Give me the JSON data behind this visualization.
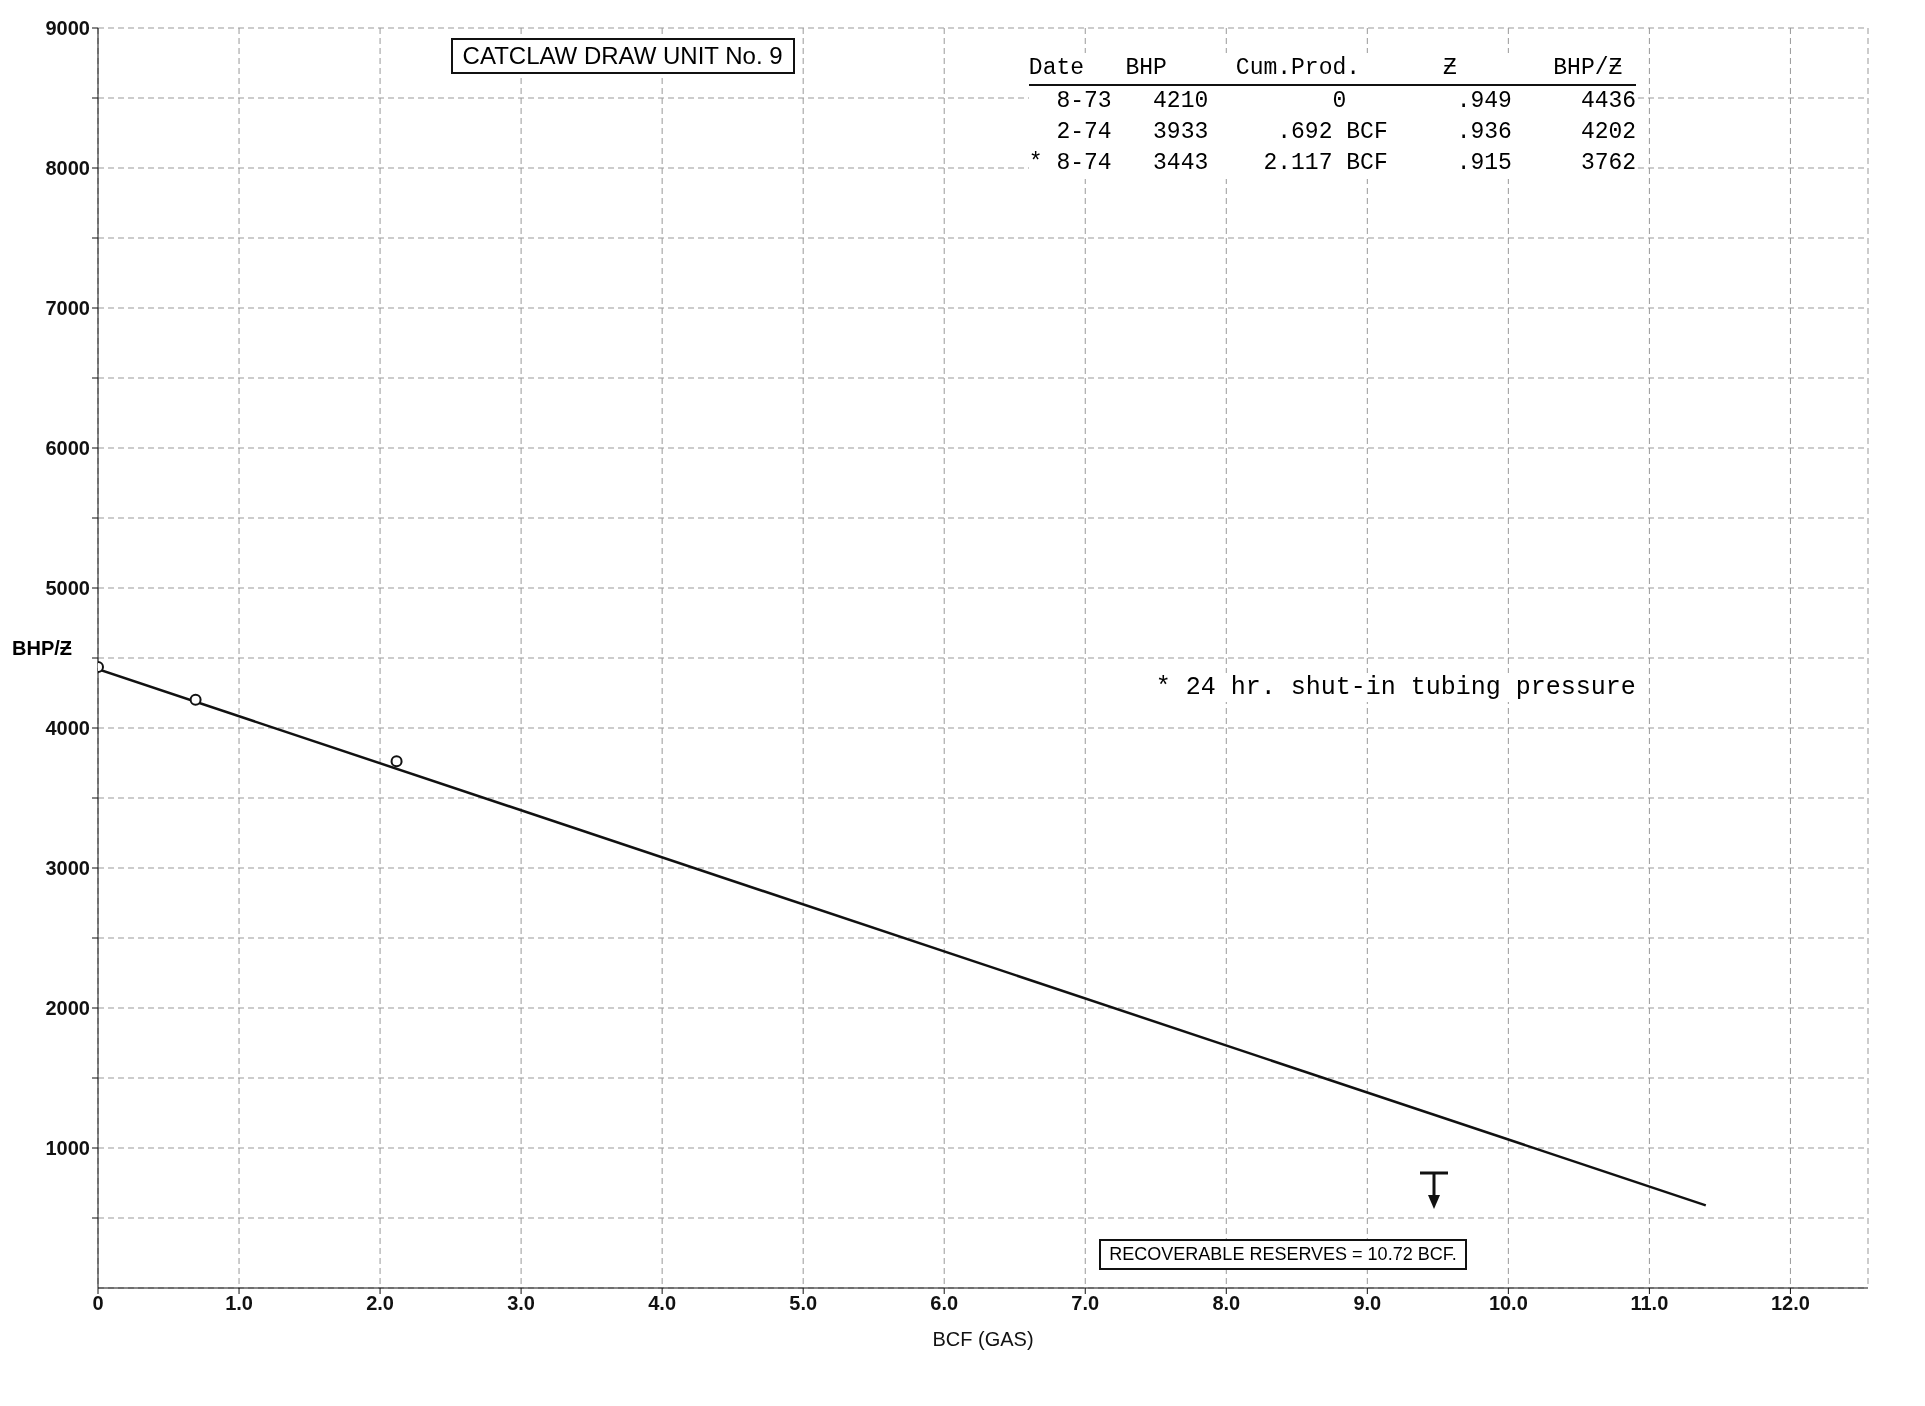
{
  "chart_data": {
    "type": "scatter",
    "title": "CATCLAW DRAW UNIT No. 9",
    "xlabel": "BCF (GAS)",
    "ylabel": "BHP/Ƶ",
    "x": [
      0,
      0.692,
      2.117
    ],
    "series": [
      {
        "color": "#111111",
        "values": [
          4436,
          4202,
          3762
        ],
        "marker": "circle"
      },
      {
        "type": "line",
        "color": "#111111",
        "x": [
          0,
          11.4
        ],
        "values": [
          4420,
          590
        ],
        "marker": "none",
        "line_style": "solid"
      }
    ],
    "xlim": [
      0,
      12.55
    ],
    "ylim": [
      0,
      9000
    ],
    "xticks": [
      0,
      {
        "value": 1,
        "label": "1.0"
      },
      {
        "value": 2,
        "label": "2.0"
      },
      {
        "value": 3,
        "label": "3.0"
      },
      {
        "value": 4,
        "label": "4.0"
      },
      {
        "value": 5,
        "label": "5.0"
      },
      {
        "value": 6,
        "label": "6.0"
      },
      {
        "value": 7,
        "label": "7.0"
      },
      {
        "value": 8,
        "label": "8.0"
      },
      {
        "value": 9,
        "label": "9.0"
      },
      {
        "value": 10,
        "label": "10.0"
      },
      {
        "value": 11,
        "label": "11.0"
      },
      {
        "value": 12,
        "label": "12.0"
      }
    ],
    "yticks": [
      {
        "value": 500,
        "label": null
      },
      1000,
      {
        "value": 1500,
        "label": null
      },
      2000,
      {
        "value": 2500,
        "label": null
      },
      3000,
      {
        "value": 3500,
        "label": null
      },
      4000,
      {
        "value": 4500,
        "label": null
      },
      5000,
      {
        "value": 5500,
        "label": null
      },
      6000,
      {
        "value": 6500,
        "label": null
      },
      7000,
      {
        "value": 7500,
        "label": null
      },
      8000,
      {
        "value": 8500,
        "label": null
      },
      9000
    ],
    "grid": true,
    "annotations": [
      "Date   BHP     Cum.Prod.      Ƶ       BHP/Ƶ",
      "  8-73   4210         0        .949     4436",
      "  2-74   3933     .692 BCF     .936     4202",
      "* 8-74   3443    2.117 BCF     .915     3762",
      "* 24 hr. shut-in tubing pressure",
      "RECOVERABLE RESERVES = 10.72 BCF."
    ]
  }
}
